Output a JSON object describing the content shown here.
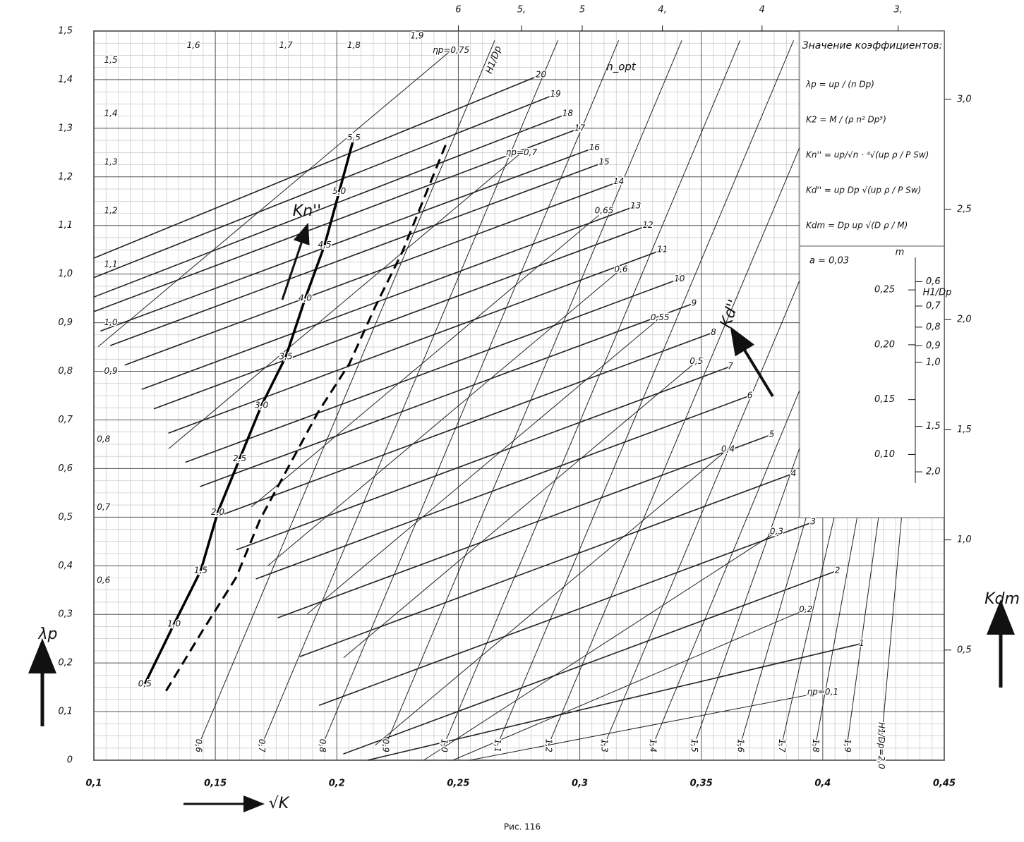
{
  "chart_data": {
    "type": "nomogram",
    "x_label": "√K",
    "y_label": "λp",
    "y2_label": "Kdm",
    "caption": "Рис. 116",
    "xlim": [
      0.1,
      0.45
    ],
    "xticks": [
      {
        "value": 0.1,
        "label": "0,1"
      },
      {
        "value": 0.15,
        "label": "0,15"
      },
      {
        "value": 0.2,
        "label": "0,2"
      },
      {
        "value": 0.25,
        "label": "0,25"
      },
      {
        "value": 0.3,
        "label": "0,3"
      },
      {
        "value": 0.35,
        "label": "0,35"
      },
      {
        "value": 0.4,
        "label": "0,4"
      },
      {
        "value": 0.45,
        "label": "0,45"
      }
    ],
    "ylim": [
      0,
      1.5
    ],
    "yticks": [
      0,
      {
        "value": 0.1,
        "label": "0,1"
      },
      {
        "value": 0.2,
        "label": "0,2"
      },
      {
        "value": 0.3,
        "label": "0,3"
      },
      {
        "value": 0.4,
        "label": "0,4"
      },
      {
        "value": 0.5,
        "label": "0,5"
      },
      {
        "value": 0.6,
        "label": "0,6"
      },
      {
        "value": 0.7,
        "label": "0,7"
      },
      {
        "value": 0.8,
        "label": "0,8"
      },
      {
        "value": 0.9,
        "label": "0,9"
      },
      {
        "value": 1.0,
        "label": "1,0"
      },
      {
        "value": 1.1,
        "label": "1,1"
      },
      {
        "value": 1.2,
        "label": "1,2"
      },
      {
        "value": 1.3,
        "label": "1,3"
      },
      {
        "value": 1.4,
        "label": "1,4"
      },
      {
        "value": 1.5,
        "label": "1,5"
      }
    ],
    "y2lim": [
      0,
      3.31
    ],
    "y2ticks": [
      {
        "value": 0.5,
        "label": "0,5"
      },
      {
        "value": 1.0,
        "label": "1,0"
      },
      {
        "value": 1.5,
        "label": "1,5"
      },
      {
        "value": 2.0,
        "label": "2,0"
      },
      {
        "value": 2.5,
        "label": "2,5"
      },
      {
        "value": 3.0,
        "label": "3,0"
      }
    ],
    "top_ticks": [
      {
        "x": 0.25,
        "label": "6"
      },
      {
        "x": 0.276,
        "label": "5,"
      },
      {
        "x": 0.301,
        "label": "5"
      },
      {
        "x": 0.334,
        "label": "4,"
      },
      {
        "x": 0.375,
        "label": "4"
      },
      {
        "x": 0.431,
        "label": "3,"
      }
    ],
    "kd_lines": {
      "name": "Kd''",
      "labels": [
        {
          "x": 0.284,
          "y": 1.41,
          "label": "20"
        },
        {
          "x": 0.29,
          "y": 1.37,
          "label": "19"
        },
        {
          "x": 0.295,
          "y": 1.33,
          "label": "18"
        },
        {
          "x": 0.3,
          "y": 1.3,
          "label": "17"
        },
        {
          "x": 0.306,
          "y": 1.26,
          "label": "16"
        },
        {
          "x": 0.31,
          "y": 1.23,
          "label": "15"
        },
        {
          "x": 0.316,
          "y": 1.19,
          "label": "14"
        },
        {
          "x": 0.323,
          "y": 1.14,
          "label": "13"
        },
        {
          "x": 0.328,
          "y": 1.1,
          "label": "12"
        },
        {
          "x": 0.334,
          "y": 1.05,
          "label": "11"
        },
        {
          "x": 0.341,
          "y": 0.99,
          "label": "10"
        },
        {
          "x": 0.347,
          "y": 0.94,
          "label": "9"
        },
        {
          "x": 0.355,
          "y": 0.88,
          "label": "8"
        },
        {
          "x": 0.362,
          "y": 0.81,
          "label": "7"
        },
        {
          "x": 0.37,
          "y": 0.75,
          "label": "6"
        },
        {
          "x": 0.379,
          "y": 0.67,
          "label": "5"
        },
        {
          "x": 0.388,
          "y": 0.59,
          "label": "4"
        },
        {
          "x": 0.396,
          "y": 0.49,
          "label": "3"
        },
        {
          "x": 0.406,
          "y": 0.39,
          "label": "2"
        },
        {
          "x": 0.416,
          "y": 0.24,
          "label": "1"
        }
      ]
    },
    "h_lines": {
      "name": "H1/Dp",
      "labels": [
        {
          "x": 0.143,
          "y": 0.03,
          "label": "0,6"
        },
        {
          "x": 0.169,
          "y": 0.03,
          "label": "0,7"
        },
        {
          "x": 0.194,
          "y": 0.03,
          "label": "0,8"
        },
        {
          "x": 0.22,
          "y": 0.03,
          "label": "0,9"
        },
        {
          "x": 0.244,
          "y": 0.03,
          "label": "1,0"
        },
        {
          "x": 0.266,
          "y": 0.03,
          "label": "1,1"
        },
        {
          "x": 0.287,
          "y": 0.03,
          "label": "1,2"
        },
        {
          "x": 0.31,
          "y": 0.03,
          "label": "1,3"
        },
        {
          "x": 0.33,
          "y": 0.03,
          "label": "1,4"
        },
        {
          "x": 0.347,
          "y": 0.03,
          "label": "1,5"
        },
        {
          "x": 0.366,
          "y": 0.03,
          "label": "1,6"
        },
        {
          "x": 0.383,
          "y": 0.03,
          "label": "1,7"
        },
        {
          "x": 0.397,
          "y": 0.03,
          "label": "1,8"
        },
        {
          "x": 0.41,
          "y": 0.03,
          "label": "1,9"
        },
        {
          "x": 0.424,
          "y": 0.03,
          "label": "H1/Dp=2,0"
        }
      ]
    },
    "kn_curve": {
      "name": "Kn''",
      "labels": [
        {
          "x": 0.121,
          "y": 0.157,
          "label": "0,5"
        },
        {
          "x": 0.133,
          "y": 0.28,
          "label": "1,0"
        },
        {
          "x": 0.144,
          "y": 0.39,
          "label": "1,5"
        },
        {
          "x": 0.151,
          "y": 0.51,
          "label": "2,0"
        },
        {
          "x": 0.16,
          "y": 0.62,
          "label": "2,5"
        },
        {
          "x": 0.169,
          "y": 0.73,
          "label": "3,0"
        },
        {
          "x": 0.179,
          "y": 0.83,
          "label": "3,5"
        },
        {
          "x": 0.187,
          "y": 0.95,
          "label": "4,0"
        },
        {
          "x": 0.195,
          "y": 1.06,
          "label": "4,5"
        },
        {
          "x": 0.201,
          "y": 1.17,
          "label": "5,0"
        },
        {
          "x": 0.207,
          "y": 1.28,
          "label": "5,5"
        }
      ]
    },
    "eta_labels": [
      {
        "x": 0.4,
        "y": 0.14,
        "label": "ηp=0,1"
      },
      {
        "x": 0.393,
        "y": 0.31,
        "label": "0,2"
      },
      {
        "x": 0.381,
        "y": 0.47,
        "label": "0,3"
      },
      {
        "x": 0.361,
        "y": 0.64,
        "label": "0,4"
      },
      {
        "x": 0.348,
        "y": 0.82,
        "label": "0,5"
      },
      {
        "x": 0.333,
        "y": 0.91,
        "label": "0,55"
      },
      {
        "x": 0.317,
        "y": 1.01,
        "label": "0,6"
      },
      {
        "x": 0.31,
        "y": 1.13,
        "label": "0,65"
      },
      {
        "x": 0.276,
        "y": 1.25,
        "label": "ηp=0,7"
      },
      {
        "x": 0.247,
        "y": 1.46,
        "label": "ηp=0,75"
      }
    ],
    "region_labels": [
      {
        "x": 0.233,
        "y": 1.49,
        "label": "1,9"
      },
      {
        "x": 0.207,
        "y": 1.47,
        "label": "1,8"
      },
      {
        "x": 0.179,
        "y": 1.47,
        "label": "1,7"
      },
      {
        "x": 0.141,
        "y": 1.47,
        "label": "1,6"
      },
      {
        "x": 0.107,
        "y": 1.44,
        "label": "1,5"
      },
      {
        "x": 0.107,
        "y": 1.33,
        "label": "1,4"
      },
      {
        "x": 0.107,
        "y": 1.23,
        "label": "1,3"
      },
      {
        "x": 0.107,
        "y": 1.13,
        "label": "1,2"
      },
      {
        "x": 0.107,
        "y": 1.02,
        "label": "1,1"
      },
      {
        "x": 0.107,
        "y": 0.9,
        "label": "1,0"
      },
      {
        "x": 0.107,
        "y": 0.8,
        "label": "0,9"
      },
      {
        "x": 0.104,
        "y": 0.66,
        "label": "0,8"
      },
      {
        "x": 0.104,
        "y": 0.52,
        "label": "0,7"
      },
      {
        "x": 0.104,
        "y": 0.37,
        "label": "0,6"
      }
    ],
    "n_opt_label": "n_opt",
    "top_h_label": "H1/Dp",
    "legend_box": {
      "title": "Значение коэффициентов:",
      "formulas": [
        "λp = up / (n Dp)",
        "K2 = M / (ρ n² Dp⁵)",
        "Kn'' = up/√n · ⁴√(up ρ / P Sw)",
        "Kd'' = up Dp √(up ρ / P Sw)",
        "Kdm = Dp up √(D ρ / M)"
      ]
    },
    "inset": {
      "note": "a = 0,03",
      "m_label": "m",
      "h_label": "H1/Dp",
      "m_ticks": [
        {
          "value": 0.25,
          "label": "0,25"
        },
        {
          "value": 0.2,
          "label": "0,20"
        },
        {
          "value": 0.15,
          "label": "0,15"
        },
        {
          "value": 0.1,
          "label": "0,10"
        }
      ],
      "h_ticks": [
        {
          "value": 0.6,
          "label": "0,6"
        },
        {
          "value": 0.7,
          "label": "0,7"
        },
        {
          "value": 0.8,
          "label": "0,8"
        },
        {
          "value": 0.9,
          "label": "0,9"
        },
        {
          "value": 1.0,
          "label": "1,0"
        },
        {
          "value": 1.5,
          "label": "1,5"
        },
        {
          "value": 2.0,
          "label": "2,0"
        }
      ]
    }
  }
}
